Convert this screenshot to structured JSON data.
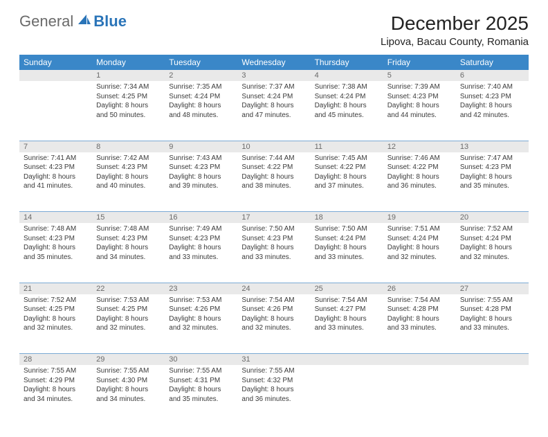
{
  "logo": {
    "general": "General",
    "blue": "Blue"
  },
  "title": "December 2025",
  "location": "Lipova, Bacau County, Romania",
  "colors": {
    "header_bg": "#3a87c8",
    "header_text": "#ffffff",
    "daynum_bg": "#e9e9e9",
    "daynum_text": "#6a6a6a",
    "cell_border": "#7aa9d4",
    "body_text": "#3a3a3a",
    "logo_gray": "#6a6a6a",
    "logo_blue": "#2a74b8"
  },
  "dayHeaders": [
    "Sunday",
    "Monday",
    "Tuesday",
    "Wednesday",
    "Thursday",
    "Friday",
    "Saturday"
  ],
  "weeks": [
    [
      {
        "n": "",
        "sr": "",
        "ss": "",
        "dl": ""
      },
      {
        "n": "1",
        "sr": "Sunrise: 7:34 AM",
        "ss": "Sunset: 4:25 PM",
        "dl": "Daylight: 8 hours and 50 minutes."
      },
      {
        "n": "2",
        "sr": "Sunrise: 7:35 AM",
        "ss": "Sunset: 4:24 PM",
        "dl": "Daylight: 8 hours and 48 minutes."
      },
      {
        "n": "3",
        "sr": "Sunrise: 7:37 AM",
        "ss": "Sunset: 4:24 PM",
        "dl": "Daylight: 8 hours and 47 minutes."
      },
      {
        "n": "4",
        "sr": "Sunrise: 7:38 AM",
        "ss": "Sunset: 4:24 PM",
        "dl": "Daylight: 8 hours and 45 minutes."
      },
      {
        "n": "5",
        "sr": "Sunrise: 7:39 AM",
        "ss": "Sunset: 4:23 PM",
        "dl": "Daylight: 8 hours and 44 minutes."
      },
      {
        "n": "6",
        "sr": "Sunrise: 7:40 AM",
        "ss": "Sunset: 4:23 PM",
        "dl": "Daylight: 8 hours and 42 minutes."
      }
    ],
    [
      {
        "n": "7",
        "sr": "Sunrise: 7:41 AM",
        "ss": "Sunset: 4:23 PM",
        "dl": "Daylight: 8 hours and 41 minutes."
      },
      {
        "n": "8",
        "sr": "Sunrise: 7:42 AM",
        "ss": "Sunset: 4:23 PM",
        "dl": "Daylight: 8 hours and 40 minutes."
      },
      {
        "n": "9",
        "sr": "Sunrise: 7:43 AM",
        "ss": "Sunset: 4:23 PM",
        "dl": "Daylight: 8 hours and 39 minutes."
      },
      {
        "n": "10",
        "sr": "Sunrise: 7:44 AM",
        "ss": "Sunset: 4:22 PM",
        "dl": "Daylight: 8 hours and 38 minutes."
      },
      {
        "n": "11",
        "sr": "Sunrise: 7:45 AM",
        "ss": "Sunset: 4:22 PM",
        "dl": "Daylight: 8 hours and 37 minutes."
      },
      {
        "n": "12",
        "sr": "Sunrise: 7:46 AM",
        "ss": "Sunset: 4:22 PM",
        "dl": "Daylight: 8 hours and 36 minutes."
      },
      {
        "n": "13",
        "sr": "Sunrise: 7:47 AM",
        "ss": "Sunset: 4:23 PM",
        "dl": "Daylight: 8 hours and 35 minutes."
      }
    ],
    [
      {
        "n": "14",
        "sr": "Sunrise: 7:48 AM",
        "ss": "Sunset: 4:23 PM",
        "dl": "Daylight: 8 hours and 35 minutes."
      },
      {
        "n": "15",
        "sr": "Sunrise: 7:48 AM",
        "ss": "Sunset: 4:23 PM",
        "dl": "Daylight: 8 hours and 34 minutes."
      },
      {
        "n": "16",
        "sr": "Sunrise: 7:49 AM",
        "ss": "Sunset: 4:23 PM",
        "dl": "Daylight: 8 hours and 33 minutes."
      },
      {
        "n": "17",
        "sr": "Sunrise: 7:50 AM",
        "ss": "Sunset: 4:23 PM",
        "dl": "Daylight: 8 hours and 33 minutes."
      },
      {
        "n": "18",
        "sr": "Sunrise: 7:50 AM",
        "ss": "Sunset: 4:24 PM",
        "dl": "Daylight: 8 hours and 33 minutes."
      },
      {
        "n": "19",
        "sr": "Sunrise: 7:51 AM",
        "ss": "Sunset: 4:24 PM",
        "dl": "Daylight: 8 hours and 32 minutes."
      },
      {
        "n": "20",
        "sr": "Sunrise: 7:52 AM",
        "ss": "Sunset: 4:24 PM",
        "dl": "Daylight: 8 hours and 32 minutes."
      }
    ],
    [
      {
        "n": "21",
        "sr": "Sunrise: 7:52 AM",
        "ss": "Sunset: 4:25 PM",
        "dl": "Daylight: 8 hours and 32 minutes."
      },
      {
        "n": "22",
        "sr": "Sunrise: 7:53 AM",
        "ss": "Sunset: 4:25 PM",
        "dl": "Daylight: 8 hours and 32 minutes."
      },
      {
        "n": "23",
        "sr": "Sunrise: 7:53 AM",
        "ss": "Sunset: 4:26 PM",
        "dl": "Daylight: 8 hours and 32 minutes."
      },
      {
        "n": "24",
        "sr": "Sunrise: 7:54 AM",
        "ss": "Sunset: 4:26 PM",
        "dl": "Daylight: 8 hours and 32 minutes."
      },
      {
        "n": "25",
        "sr": "Sunrise: 7:54 AM",
        "ss": "Sunset: 4:27 PM",
        "dl": "Daylight: 8 hours and 33 minutes."
      },
      {
        "n": "26",
        "sr": "Sunrise: 7:54 AM",
        "ss": "Sunset: 4:28 PM",
        "dl": "Daylight: 8 hours and 33 minutes."
      },
      {
        "n": "27",
        "sr": "Sunrise: 7:55 AM",
        "ss": "Sunset: 4:28 PM",
        "dl": "Daylight: 8 hours and 33 minutes."
      }
    ],
    [
      {
        "n": "28",
        "sr": "Sunrise: 7:55 AM",
        "ss": "Sunset: 4:29 PM",
        "dl": "Daylight: 8 hours and 34 minutes."
      },
      {
        "n": "29",
        "sr": "Sunrise: 7:55 AM",
        "ss": "Sunset: 4:30 PM",
        "dl": "Daylight: 8 hours and 34 minutes."
      },
      {
        "n": "30",
        "sr": "Sunrise: 7:55 AM",
        "ss": "Sunset: 4:31 PM",
        "dl": "Daylight: 8 hours and 35 minutes."
      },
      {
        "n": "31",
        "sr": "Sunrise: 7:55 AM",
        "ss": "Sunset: 4:32 PM",
        "dl": "Daylight: 8 hours and 36 minutes."
      },
      {
        "n": "",
        "sr": "",
        "ss": "",
        "dl": ""
      },
      {
        "n": "",
        "sr": "",
        "ss": "",
        "dl": ""
      },
      {
        "n": "",
        "sr": "",
        "ss": "",
        "dl": ""
      }
    ]
  ]
}
